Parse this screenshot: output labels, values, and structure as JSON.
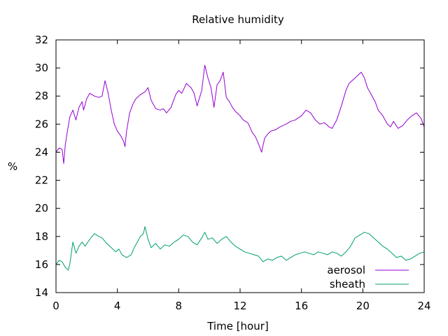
{
  "chart_data": {
    "type": "line",
    "title": "Relative humidity",
    "xlabel": "Time [hour]",
    "ylabel": "%",
    "xlim": [
      0,
      24
    ],
    "ylim": [
      14,
      32
    ],
    "xticks": [
      0,
      4,
      8,
      12,
      16,
      20,
      24
    ],
    "yticks": [
      14,
      16,
      18,
      20,
      22,
      24,
      26,
      28,
      30,
      32
    ],
    "grid": false,
    "legend_position": "bottom-right",
    "series": [
      {
        "name": "aerosol",
        "color": "#9400d3",
        "x": [
          0,
          0.2,
          0.4,
          0.5,
          0.6,
          0.7,
          0.9,
          1.1,
          1.3,
          1.5,
          1.7,
          1.8,
          2.0,
          2.2,
          2.5,
          2.8,
          3.0,
          3.2,
          3.4,
          3.6,
          3.8,
          4.0,
          4.2,
          4.4,
          4.5,
          4.6,
          4.8,
          5.0,
          5.2,
          5.5,
          5.8,
          6.0,
          6.2,
          6.5,
          6.8,
          7.0,
          7.2,
          7.5,
          7.8,
          8.0,
          8.2,
          8.5,
          8.8,
          9.0,
          9.2,
          9.5,
          9.7,
          9.9,
          10.1,
          10.3,
          10.5,
          10.7,
          10.9,
          11.1,
          11.3,
          11.5,
          11.7,
          12.0,
          12.2,
          12.5,
          12.8,
          13.0,
          13.2,
          13.4,
          13.6,
          13.8,
          14.0,
          14.3,
          14.6,
          15.0,
          15.3,
          15.6,
          16.0,
          16.3,
          16.6,
          16.9,
          17.2,
          17.5,
          17.8,
          18.0,
          18.3,
          18.6,
          18.9,
          19.1,
          19.3,
          19.6,
          19.9,
          20.1,
          20.3,
          20.5,
          20.8,
          21.0,
          21.3,
          21.6,
          21.8,
          22.0,
          22.3,
          22.6,
          22.9,
          23.2,
          23.5,
          23.8,
          24.0
        ],
        "values": [
          24.0,
          24.3,
          24.2,
          23.2,
          24.5,
          25.2,
          26.5,
          27.0,
          26.3,
          27.2,
          27.6,
          27.0,
          27.8,
          28.2,
          28.0,
          27.9,
          28.0,
          29.1,
          28.2,
          27.0,
          26.0,
          25.5,
          25.2,
          24.8,
          24.4,
          25.5,
          26.8,
          27.4,
          27.8,
          28.1,
          28.3,
          28.6,
          27.7,
          27.1,
          27.0,
          27.1,
          26.8,
          27.2,
          28.1,
          28.4,
          28.2,
          28.9,
          28.6,
          28.2,
          27.3,
          28.4,
          30.2,
          29.3,
          28.6,
          27.2,
          28.8,
          29.1,
          29.7,
          27.9,
          27.6,
          27.2,
          26.9,
          26.6,
          26.3,
          26.1,
          25.4,
          25.1,
          24.6,
          24.0,
          25.0,
          25.3,
          25.5,
          25.6,
          25.8,
          26.0,
          26.2,
          26.3,
          26.6,
          27.0,
          26.8,
          26.3,
          26.0,
          26.1,
          25.8,
          25.7,
          26.3,
          27.3,
          28.4,
          28.9,
          29.1,
          29.4,
          29.7,
          29.3,
          28.6,
          28.2,
          27.6,
          27.0,
          26.6,
          26.0,
          25.8,
          26.2,
          25.7,
          25.9,
          26.3,
          26.6,
          26.8,
          26.4,
          25.8
        ]
      },
      {
        "name": "sheath",
        "color": "#009e73",
        "x": [
          0,
          0.2,
          0.4,
          0.6,
          0.8,
          0.9,
          1.0,
          1.1,
          1.3,
          1.5,
          1.7,
          1.9,
          2.2,
          2.5,
          2.8,
          3.0,
          3.3,
          3.6,
          3.9,
          4.1,
          4.3,
          4.6,
          4.9,
          5.1,
          5.3,
          5.5,
          5.7,
          5.8,
          6.0,
          6.2,
          6.5,
          6.8,
          7.1,
          7.4,
          7.7,
          8.0,
          8.3,
          8.6,
          8.9,
          9.2,
          9.5,
          9.7,
          9.9,
          10.2,
          10.5,
          10.8,
          11.1,
          11.4,
          11.7,
          12.0,
          12.3,
          12.6,
          12.9,
          13.2,
          13.5,
          13.8,
          14.1,
          14.4,
          14.7,
          15.0,
          15.3,
          15.6,
          15.9,
          16.2,
          16.5,
          16.8,
          17.1,
          17.4,
          17.7,
          18.0,
          18.3,
          18.6,
          18.9,
          19.2,
          19.5,
          19.8,
          20.1,
          20.4,
          20.7,
          21.0,
          21.3,
          21.6,
          21.9,
          22.2,
          22.5,
          22.8,
          23.1,
          23.4,
          23.7,
          24.0
        ],
        "values": [
          16.0,
          16.3,
          16.2,
          15.8,
          15.6,
          16.0,
          16.8,
          17.6,
          16.8,
          17.3,
          17.6,
          17.3,
          17.8,
          18.2,
          18.0,
          17.9,
          17.5,
          17.2,
          16.9,
          17.1,
          16.7,
          16.5,
          16.7,
          17.2,
          17.6,
          18.0,
          18.2,
          18.7,
          17.8,
          17.2,
          17.5,
          17.1,
          17.4,
          17.3,
          17.6,
          17.8,
          18.1,
          18.0,
          17.6,
          17.4,
          17.9,
          18.3,
          17.8,
          17.9,
          17.5,
          17.8,
          18.0,
          17.6,
          17.3,
          17.1,
          16.9,
          16.8,
          16.7,
          16.6,
          16.2,
          16.4,
          16.3,
          16.5,
          16.6,
          16.3,
          16.5,
          16.7,
          16.8,
          16.9,
          16.8,
          16.7,
          16.9,
          16.8,
          16.7,
          16.9,
          16.8,
          16.6,
          16.9,
          17.3,
          17.9,
          18.1,
          18.3,
          18.2,
          17.9,
          17.6,
          17.3,
          17.1,
          16.8,
          16.5,
          16.6,
          16.3,
          16.4,
          16.6,
          16.8,
          16.9
        ]
      }
    ]
  }
}
